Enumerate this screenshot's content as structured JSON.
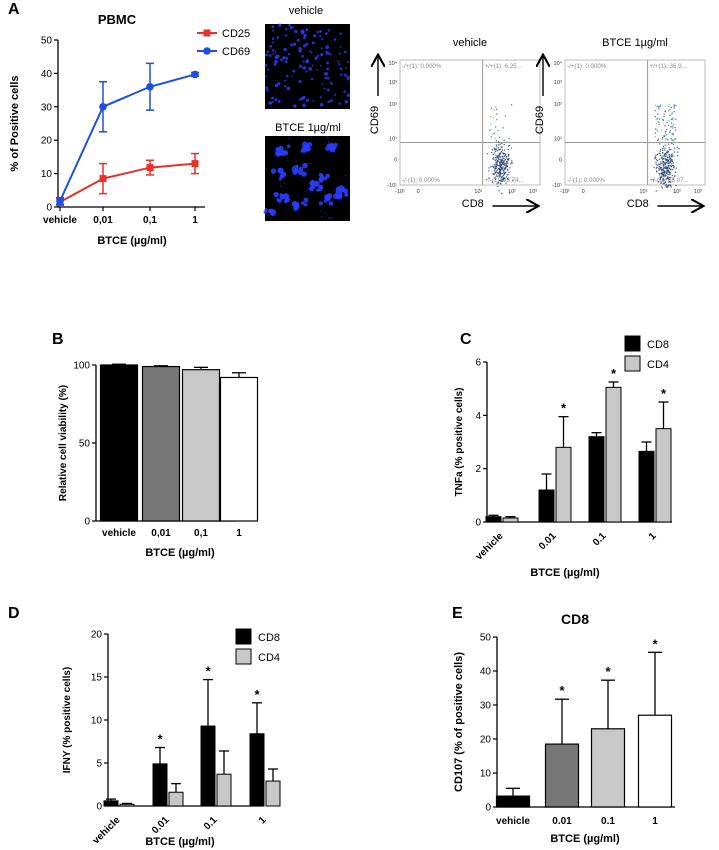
{
  "panels": {
    "A": "A",
    "B": "B",
    "C": "C",
    "D": "D",
    "E": "E"
  },
  "colors": {
    "cd25": "#e8312a",
    "cd69": "#1f4fe0",
    "black": "#000000",
    "dark_gray": "#777777",
    "light_gray": "#c8c8c8",
    "white": "#ffffff",
    "micro_bg": "#000000",
    "micro_cells": "#2a3cff"
  },
  "micro": {
    "top_label": "vehicle",
    "bottom_label": "BTCE 1µg/ml"
  },
  "flow": [
    {
      "title": "vehicle",
      "ylabel": "CD69",
      "xlabel": "CD8",
      "quadrants": {
        "tl": "-/+(1): 0.000%",
        "tr": "+/+(1): 6.25...",
        "bl": "-/-(1): 0.000%",
        "br": "+/-(1): 93.74..."
      },
      "y_ticks": [
        "10⁴",
        "10³",
        "10²",
        "10¹",
        "0",
        "-10¹"
      ],
      "x_ticks": [
        "-10¹",
        "0",
        "10¹",
        "10²",
        "10³"
      ]
    },
    {
      "title": "BTCE 1µg/ml",
      "ylabel": "CD69",
      "xlabel": "CD8",
      "quadrants": {
        "tl": "-/+(1): 0.000%",
        "tr": "+/+(1): 36.9...",
        "bl": "-/-(1): 0.000%",
        "br": "+/-(1): 63.07..."
      },
      "y_ticks": [
        "10⁴",
        "10³",
        "10²",
        "10¹",
        "0",
        "-10¹"
      ],
      "x_ticks": [
        "-10¹",
        "0",
        "10¹",
        "10²",
        "10³"
      ]
    }
  ],
  "chart_data": [
    {
      "panel": "A",
      "type": "line",
      "title": "PBMC",
      "xlabel": "BTCE (µg/ml)",
      "ylabel": "% of Positive cells",
      "categories": [
        "vehicle",
        "0,01",
        "0,1",
        "1"
      ],
      "ylim": [
        0,
        50
      ],
      "yticks": [
        0,
        10,
        20,
        30,
        40,
        50
      ],
      "legend_position": "top-right",
      "series": [
        {
          "name": "CD25",
          "values": [
            1.5,
            8.5,
            11.8,
            13
          ],
          "errors": [
            1,
            4.5,
            2.2,
            3
          ],
          "marker": "square"
        },
        {
          "name": "CD69",
          "values": [
            1.8,
            30,
            36,
            39.7
          ],
          "errors": [
            1,
            7.5,
            7,
            0.6
          ],
          "marker": "circle"
        }
      ]
    },
    {
      "panel": "B",
      "type": "bar",
      "xlabel": "BTCE (µg/ml)",
      "ylabel": "Relative cell viability (%)",
      "categories": [
        "vehicle",
        "0,01",
        "0,1",
        "1"
      ],
      "ylim": [
        0,
        100
      ],
      "yticks": [
        0,
        50,
        100
      ],
      "values": [
        100,
        99,
        97,
        92
      ],
      "errors": [
        0.5,
        0.5,
        1.5,
        3
      ]
    },
    {
      "panel": "C",
      "type": "bar",
      "xlabel": "BTCE (µg/ml)",
      "ylabel": "TNFa (% positive cells)",
      "categories": [
        "vehicle",
        "0.01",
        "0.1",
        "1"
      ],
      "ylim": [
        0,
        6
      ],
      "yticks": [
        0,
        2,
        4,
        6
      ],
      "legend_position": "top-right",
      "series": [
        {
          "name": "CD8",
          "values": [
            0.2,
            1.2,
            3.2,
            2.65
          ],
          "errors": [
            0.05,
            0.6,
            0.15,
            0.35
          ],
          "stars": [
            false,
            false,
            false,
            false
          ]
        },
        {
          "name": "CD4",
          "values": [
            0.15,
            2.8,
            5.05,
            3.5
          ],
          "errors": [
            0.05,
            1.15,
            0.2,
            1.0
          ],
          "stars": [
            false,
            true,
            true,
            true
          ]
        }
      ],
      "star_label": "*"
    },
    {
      "panel": "D",
      "type": "bar",
      "xlabel": "BTCE (µg/ml)",
      "ylabel": "IFNY (% positive cells)",
      "categories": [
        "vehicle",
        "0.01",
        "0.1",
        "1"
      ],
      "ylim": [
        0,
        20
      ],
      "yticks": [
        0,
        5,
        10,
        15,
        20
      ],
      "legend_position": "top-right",
      "series": [
        {
          "name": "CD8",
          "values": [
            0.6,
            4.9,
            9.3,
            8.4
          ],
          "errors": [
            0.2,
            1.9,
            5.4,
            3.6
          ],
          "stars": [
            false,
            true,
            true,
            true
          ]
        },
        {
          "name": "CD4",
          "values": [
            0.2,
            1.6,
            3.7,
            2.9
          ],
          "errors": [
            0.1,
            1.0,
            2.7,
            1.4
          ],
          "stars": [
            false,
            false,
            false,
            false
          ]
        }
      ],
      "star_label": "*"
    },
    {
      "panel": "E",
      "type": "bar",
      "title": "CD8",
      "xlabel": "BTCE (µg/ml)",
      "ylabel": "CD107 (% of positive cells)",
      "categories": [
        "vehicle",
        "0.01",
        "0.1",
        "1"
      ],
      "ylim": [
        0,
        50
      ],
      "yticks": [
        0,
        10,
        20,
        30,
        40,
        50
      ],
      "values": [
        3.2,
        18.5,
        23,
        27
      ],
      "errors": [
        2.3,
        13.2,
        14.3,
        18.5
      ],
      "stars": [
        false,
        true,
        true,
        true
      ],
      "star_label": "*"
    }
  ]
}
